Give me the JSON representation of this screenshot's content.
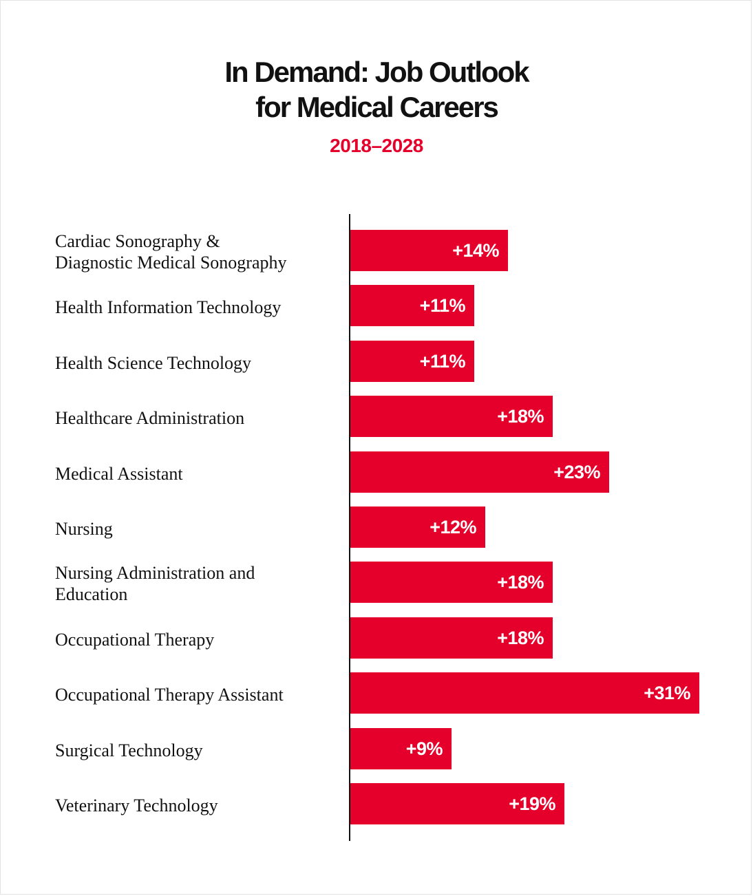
{
  "chart_data": {
    "type": "bar",
    "orientation": "horizontal",
    "title": [
      "In Demand: Job Outlook",
      "for Medical Careers"
    ],
    "subtitle": "2018–2028",
    "categories": [
      [
        "Cardiac Sonography &",
        "Diagnostic Medical Sonography"
      ],
      [
        "Health Information Technology"
      ],
      [
        "Health Science Technology"
      ],
      [
        "Healthcare Administration"
      ],
      [
        "Medical Assistant"
      ],
      [
        "Nursing"
      ],
      [
        "Nursing Administration and",
        "Education"
      ],
      [
        "Occupational Therapy"
      ],
      [
        "Occupational Therapy Assistant"
      ],
      [
        "Surgical Technology"
      ],
      [
        "Veterinary Technology"
      ]
    ],
    "values": [
      14,
      11,
      11,
      18,
      23,
      12,
      18,
      18,
      31,
      9,
      19
    ],
    "value_labels": [
      "+14%",
      "+11%",
      "+11%",
      "+18%",
      "+23%",
      "+12%",
      "+18%",
      "+18%",
      "+31%",
      "+9%",
      "+19%"
    ],
    "unit": "%",
    "bar_color": "#e4002b",
    "title_color": "#111111",
    "subtitle_color": "#e4002b",
    "xlim": [
      0,
      31
    ],
    "grid": false,
    "legend": "none"
  }
}
